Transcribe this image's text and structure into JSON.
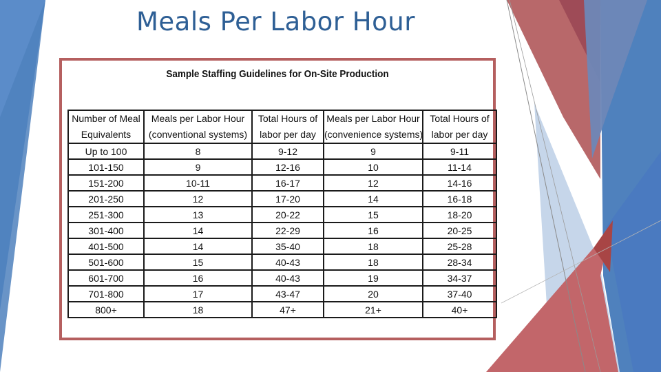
{
  "slide": {
    "title": "Meals Per Labor Hour"
  },
  "figure": {
    "heading": "Sample Staffing Guidelines for On-Site Production",
    "columns": [
      {
        "line1": "Number of Meal",
        "line2": "Equivalents"
      },
      {
        "line1": "Meals per Labor Hour",
        "line2": "(conventional systems)"
      },
      {
        "line1": "Total Hours of",
        "line2": "labor per day"
      },
      {
        "line1": "Meals per Labor Hour",
        "line2": "(convenience systems)"
      },
      {
        "line1": "Total Hours of",
        "line2": "labor per day"
      }
    ],
    "rows": [
      [
        "Up to 100",
        "8",
        "9-12",
        "9",
        "9-11"
      ],
      [
        "101-150",
        "9",
        "12-16",
        "10",
        "11-14"
      ],
      [
        "151-200",
        "10-11",
        "16-17",
        "12",
        "14-16"
      ],
      [
        "201-250",
        "12",
        "17-20",
        "14",
        "16-18"
      ],
      [
        "251-300",
        "13",
        "20-22",
        "15",
        "18-20"
      ],
      [
        "301-400",
        "14",
        "22-29",
        "16",
        "20-25"
      ],
      [
        "401-500",
        "14",
        "35-40",
        "18",
        "25-28"
      ],
      [
        "501-600",
        "15",
        "40-43",
        "18",
        "28-34"
      ],
      [
        "601-700",
        "16",
        "40-43",
        "19",
        "34-37"
      ],
      [
        "701-800",
        "17",
        "43-47",
        "20",
        "37-40"
      ],
      [
        "800+",
        "18",
        "47+",
        "21+",
        "40+"
      ]
    ]
  },
  "colors": {
    "title": "#2E5F95",
    "frame_border": "#B55F5F",
    "accent_blue": "#4F81BD",
    "accent_red": "#C0504D"
  }
}
